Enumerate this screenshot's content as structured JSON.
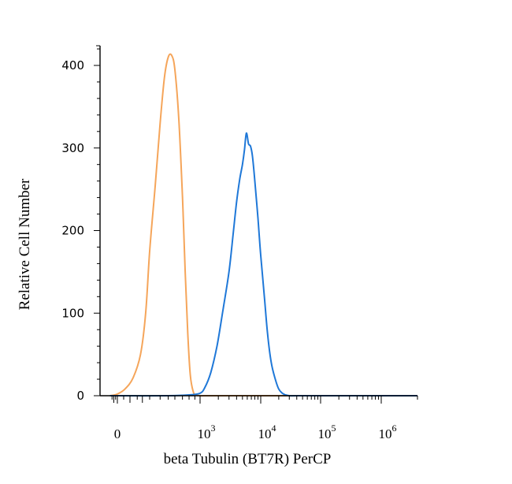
{
  "chart_data": {
    "type": "line",
    "xlabel": "beta Tubulin (BT7R) PerCP",
    "ylabel": "Relative Cell Number",
    "x_scale": "biexponential",
    "ylim": [
      0,
      420
    ],
    "y_ticks": [
      0,
      100,
      200,
      300,
      400
    ],
    "x_ticks": [
      {
        "value": 0,
        "base": "0",
        "exp": ""
      },
      {
        "value": 1000,
        "base": "10",
        "exp": "3"
      },
      {
        "value": 10000,
        "base": "10",
        "exp": "4"
      },
      {
        "value": 100000,
        "base": "10",
        "exp": "5"
      },
      {
        "value": 1000000,
        "base": "10",
        "exp": "6"
      }
    ],
    "series": [
      {
        "color": "#f5a55a",
        "x": [
          -200,
          0,
          60,
          120,
          180,
          240,
          300,
          350,
          400,
          450,
          500,
          550,
          600,
          650,
          700,
          740,
          780,
          820,
          870,
          920,
          1000,
          1200,
          3000,
          10000,
          100000,
          1000000,
          2000000
        ],
        "y": [
          0,
          2,
          8,
          22,
          50,
          100,
          175,
          255,
          330,
          385,
          410,
          412,
          395,
          335,
          240,
          150,
          75,
          25,
          5,
          1,
          0,
          0,
          0,
          0,
          0,
          0,
          0
        ]
      },
      {
        "color": "#1f78d8",
        "x": [
          -200,
          0,
          500,
          800,
          1000,
          1200,
          1500,
          1900,
          2400,
          3000,
          3500,
          4000,
          4500,
          5000,
          5400,
          5800,
          6300,
          6800,
          7300,
          8000,
          9000,
          10000,
          11500,
          13000,
          15000,
          17500,
          20000,
          23000,
          26000,
          30000,
          40000,
          100000,
          1000000,
          2000000
        ],
        "y": [
          0,
          0,
          0,
          1,
          3,
          10,
          28,
          60,
          105,
          150,
          195,
          235,
          262,
          280,
          298,
          318,
          305,
          302,
          290,
          260,
          215,
          170,
          120,
          75,
          40,
          20,
          8,
          3,
          1,
          0,
          0,
          0,
          0,
          0
        ]
      }
    ]
  }
}
